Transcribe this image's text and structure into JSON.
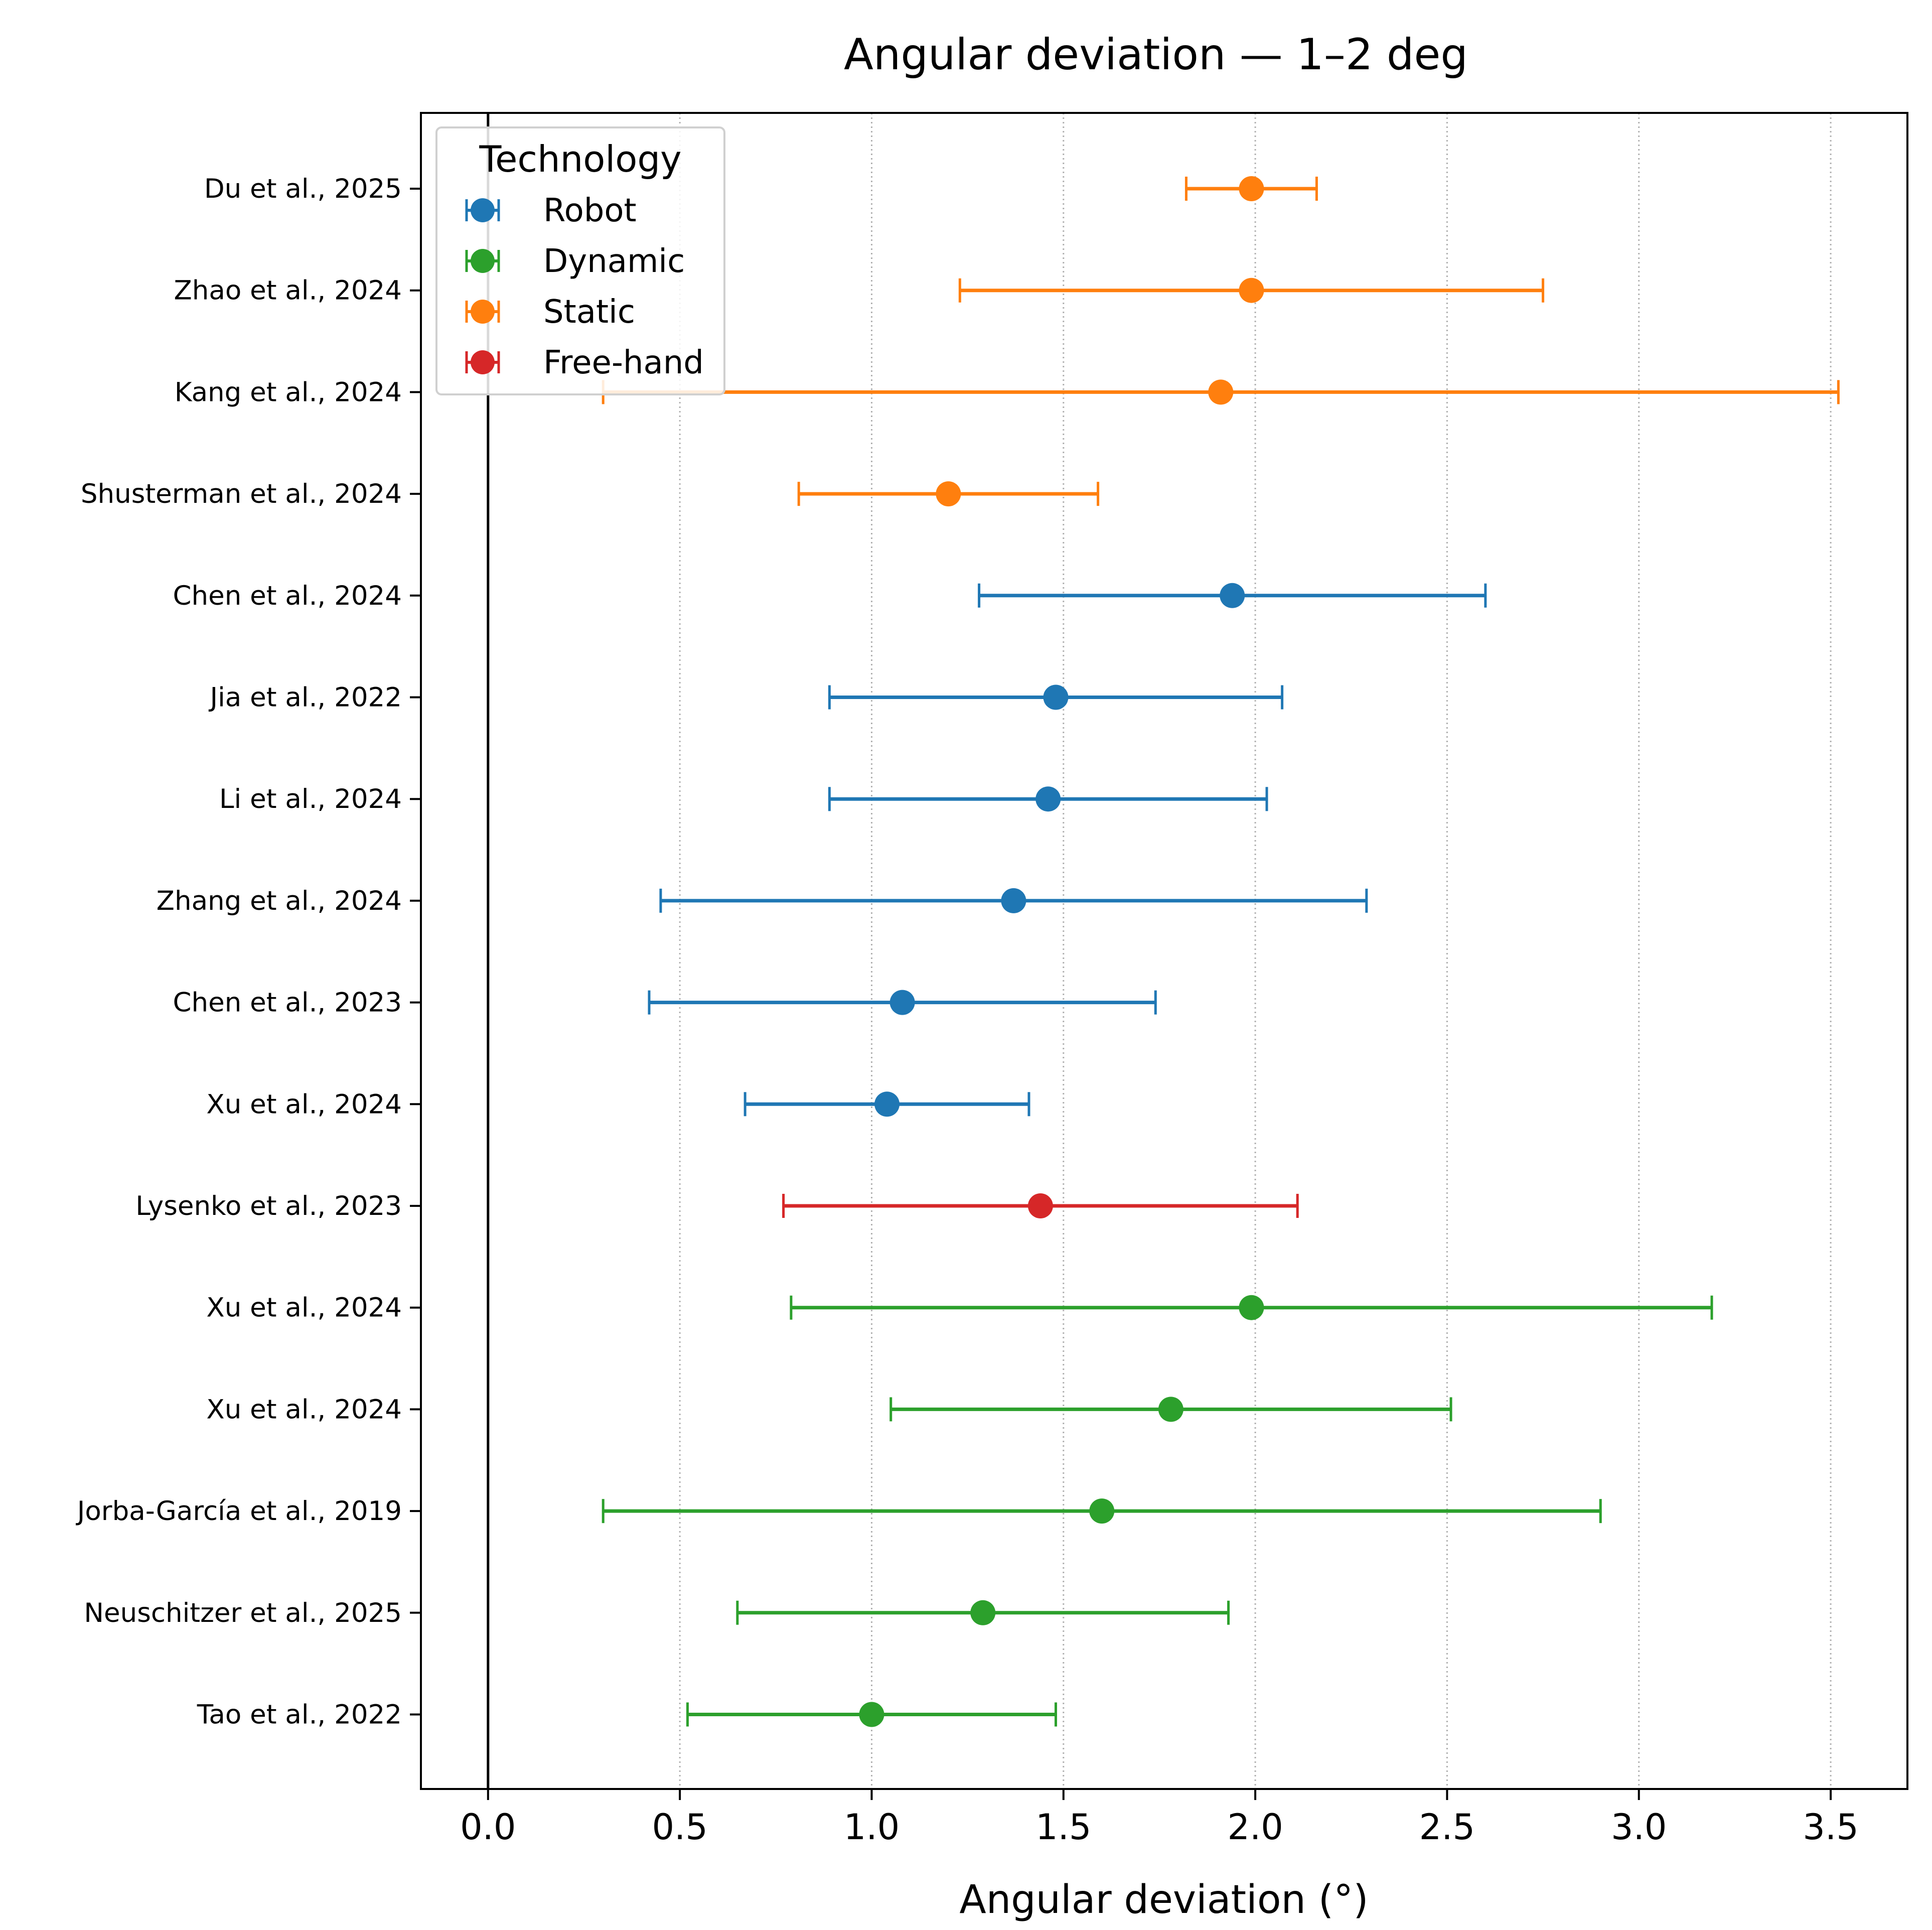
{
  "chart_data": {
    "type": "forest",
    "title": "Angular deviation — 1–2 deg",
    "xlabel": "Angular deviation (°)",
    "ylabel": "",
    "xlim": [
      -0.175,
      3.7
    ],
    "xticks": [
      0.0,
      0.5,
      1.0,
      1.5,
      2.0,
      2.5,
      3.0,
      3.5
    ],
    "xtick_labels": [
      "0.0",
      "0.5",
      "1.0",
      "1.5",
      "2.0",
      "2.5",
      "3.0",
      "3.5"
    ],
    "grid": "vertical-dotted",
    "reference_line": 0,
    "legend": {
      "title": "Technology",
      "placement": "top-left",
      "entries": [
        {
          "label": "Robot",
          "color": "#1f77b4"
        },
        {
          "label": "Dynamic",
          "color": "#2ca02c"
        },
        {
          "label": "Static",
          "color": "#ff7f0e"
        },
        {
          "label": "Free-hand",
          "color": "#d62728"
        }
      ]
    },
    "rows": [
      {
        "study": "Du et al., 2025",
        "tech": "Static",
        "mean": 1.99,
        "lower": 1.82,
        "upper": 2.16
      },
      {
        "study": "Zhao et al., 2024",
        "tech": "Static",
        "mean": 1.99,
        "lower": 1.23,
        "upper": 2.75
      },
      {
        "study": "Kang et al., 2024",
        "tech": "Static",
        "mean": 1.91,
        "lower": 0.3,
        "upper": 3.52
      },
      {
        "study": "Shusterman et al., 2024",
        "tech": "Static",
        "mean": 1.2,
        "lower": 0.81,
        "upper": 1.59
      },
      {
        "study": "Chen et al., 2024",
        "tech": "Robot",
        "mean": 1.94,
        "lower": 1.28,
        "upper": 2.6
      },
      {
        "study": "Jia et al., 2022",
        "tech": "Robot",
        "mean": 1.48,
        "lower": 0.89,
        "upper": 2.07
      },
      {
        "study": "Li et al., 2024",
        "tech": "Robot",
        "mean": 1.46,
        "lower": 0.89,
        "upper": 2.03
      },
      {
        "study": "Zhang et al., 2024",
        "tech": "Robot",
        "mean": 1.37,
        "lower": 0.45,
        "upper": 2.29
      },
      {
        "study": "Chen et al., 2023",
        "tech": "Robot",
        "mean": 1.08,
        "lower": 0.42,
        "upper": 1.74
      },
      {
        "study": "Xu et al., 2024",
        "tech": "Robot",
        "mean": 1.04,
        "lower": 0.67,
        "upper": 1.41
      },
      {
        "study": "Lysenko et al., 2023",
        "tech": "Free-hand",
        "mean": 1.44,
        "lower": 0.77,
        "upper": 2.11
      },
      {
        "study": "Xu et al., 2024",
        "tech": "Dynamic",
        "mean": 1.99,
        "lower": 0.79,
        "upper": 3.19
      },
      {
        "study": "Xu et al., 2024",
        "tech": "Dynamic",
        "mean": 1.78,
        "lower": 1.05,
        "upper": 2.51
      },
      {
        "study": "Jorba-García et al., 2019",
        "tech": "Dynamic",
        "mean": 1.6,
        "lower": 0.3,
        "upper": 2.9
      },
      {
        "study": "Neuschitzer et al., 2025",
        "tech": "Dynamic",
        "mean": 1.29,
        "lower": 0.65,
        "upper": 1.93
      },
      {
        "study": "Tao et al., 2022",
        "tech": "Dynamic",
        "mean": 1.0,
        "lower": 0.52,
        "upper": 1.48
      }
    ]
  }
}
